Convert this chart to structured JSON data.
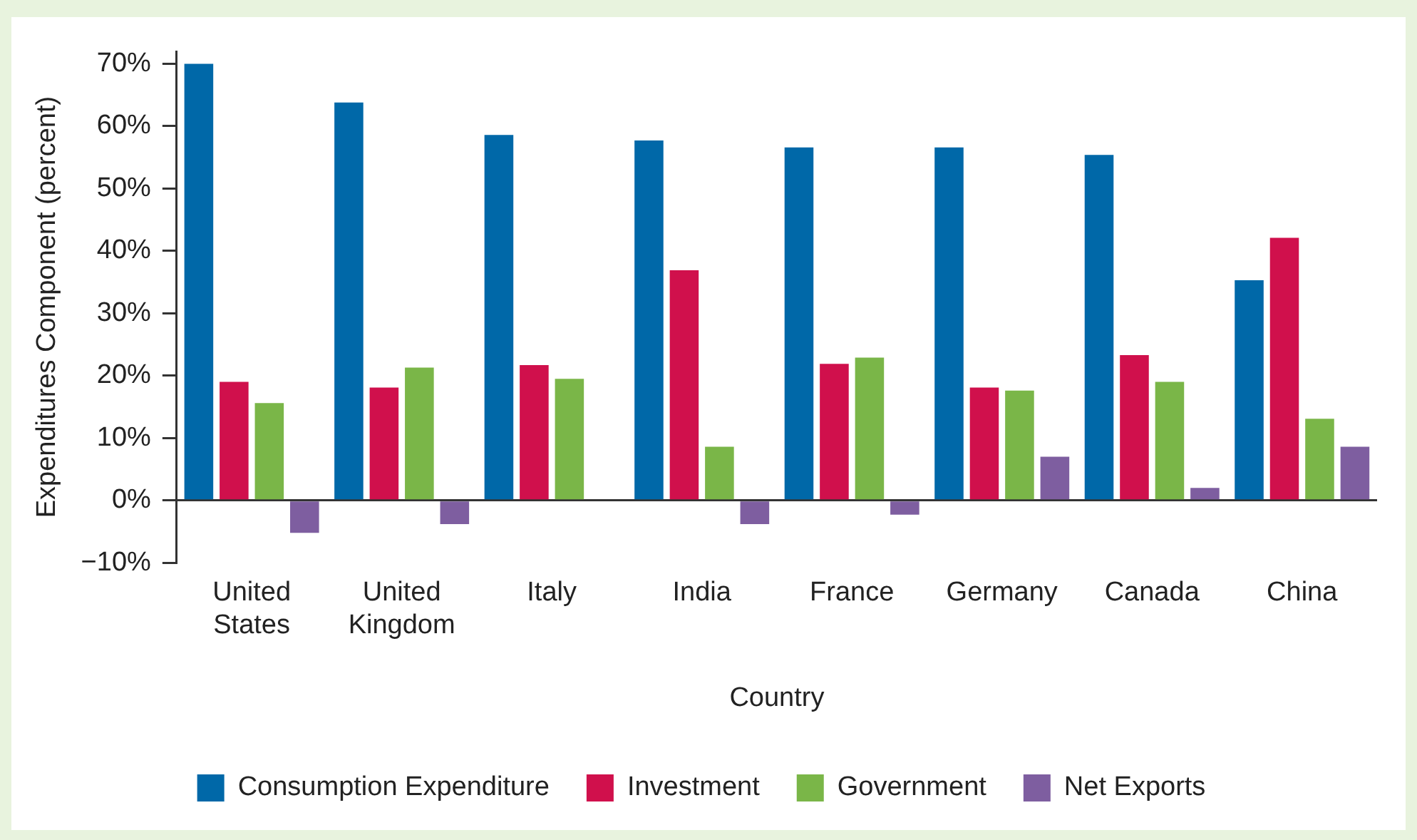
{
  "chart_data": {
    "type": "bar",
    "xlabel": "Country",
    "ylabel": "Expenditures Component (percent)",
    "categories": [
      "United States",
      "United Kingdom",
      "Italy",
      "India",
      "France",
      "Germany",
      "Canada",
      "China"
    ],
    "series": [
      {
        "name": "Consumption Expenditure",
        "color": "#0068a8",
        "values": [
          70,
          63.8,
          58.6,
          57.7,
          56.6,
          56.6,
          55.4,
          35.3
        ]
      },
      {
        "name": "Investment",
        "color": "#d0104c",
        "values": [
          19,
          18.1,
          21.7,
          36.9,
          21.9,
          18.1,
          23.3,
          42.1
        ]
      },
      {
        "name": "Government",
        "color": "#7ab648",
        "values": [
          15.6,
          21.3,
          19.5,
          8.6,
          22.9,
          17.6,
          19,
          13.1
        ]
      },
      {
        "name": "Net Exports",
        "color": "#7e5ea0",
        "values": [
          -5.2,
          -3.8,
          0,
          -3.8,
          -2.3,
          7,
          2,
          8.6
        ]
      }
    ],
    "ylim": [
      -10,
      72
    ],
    "yticks": [
      {
        "value": -10,
        "label": "−10%"
      },
      {
        "value": 0,
        "label": "0%"
      },
      {
        "value": 10,
        "label": "10%"
      },
      {
        "value": 20,
        "label": "20%"
      },
      {
        "value": 30,
        "label": "30%"
      },
      {
        "value": 40,
        "label": "40%"
      },
      {
        "value": 50,
        "label": "50%"
      },
      {
        "value": 60,
        "label": "60%"
      },
      {
        "value": 70,
        "label": "70%"
      }
    ],
    "legend": "bottom"
  }
}
